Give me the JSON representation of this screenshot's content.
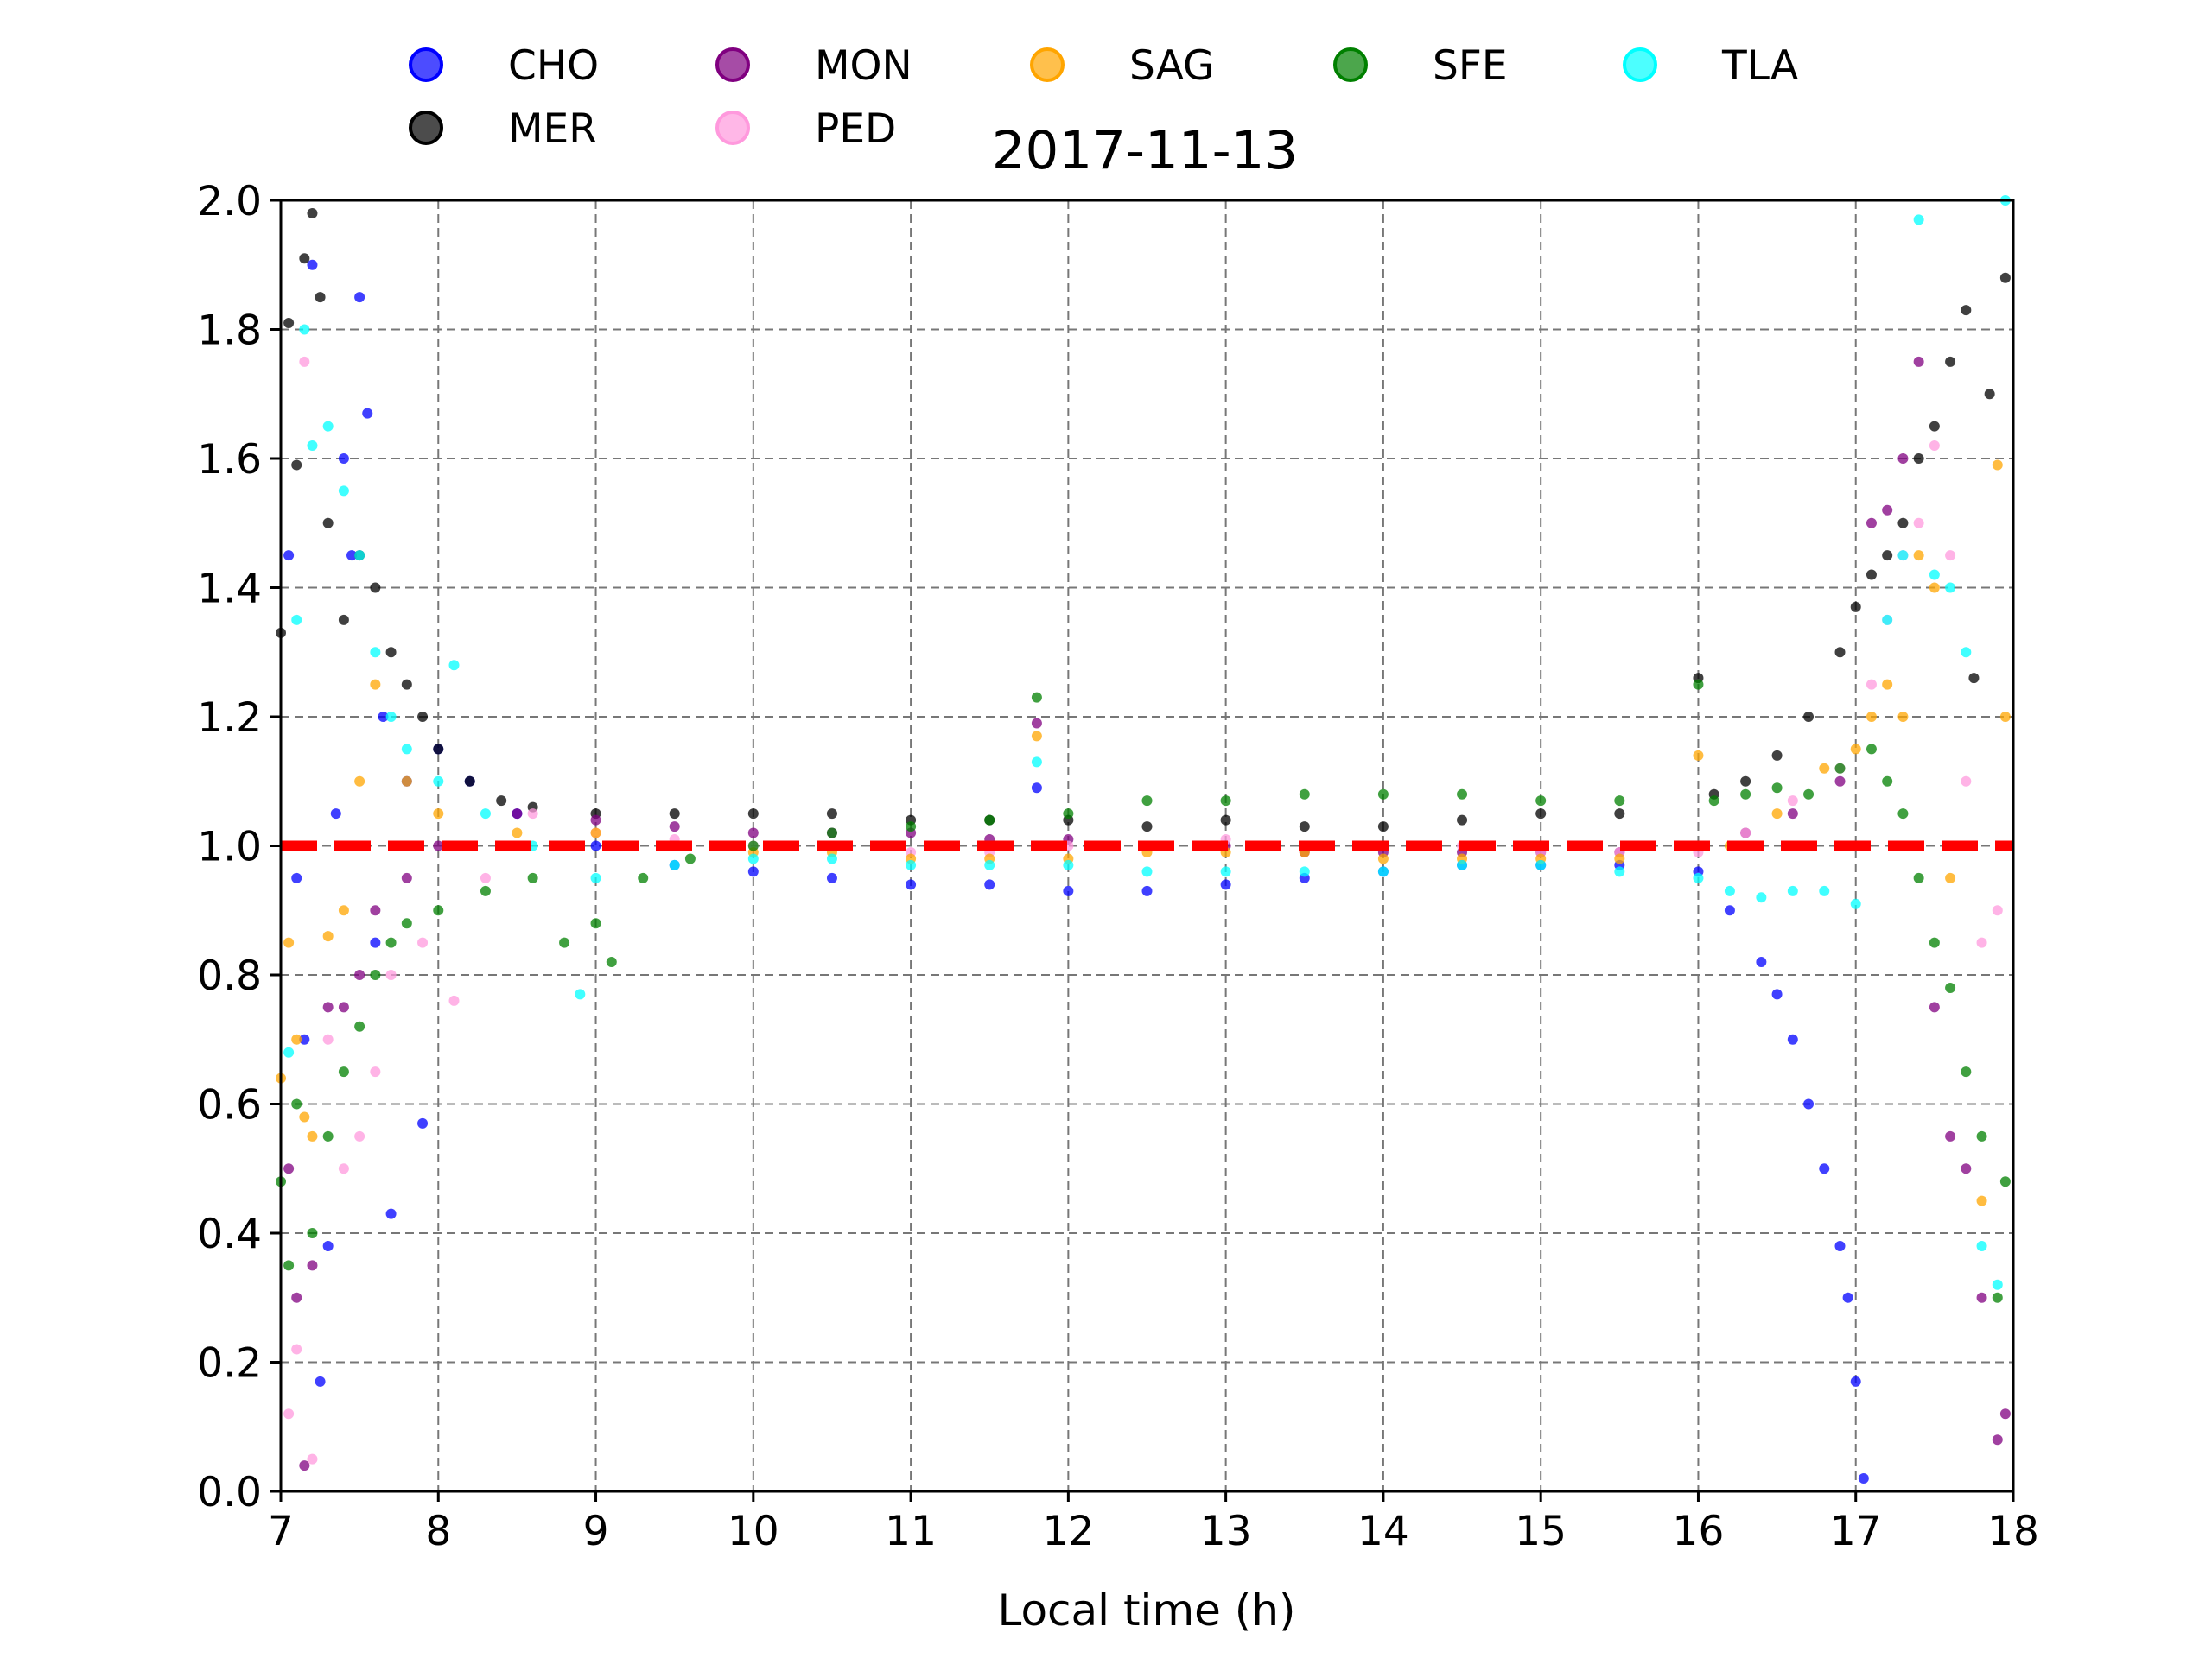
{
  "chart_data": {
    "type": "scatter",
    "title": "2017-11-13",
    "xlabel": "Local time (h)",
    "ylabel": "",
    "xlim": [
      7,
      18
    ],
    "ylim": [
      0.0,
      2.0
    ],
    "xticks": [
      "7",
      "8",
      "9",
      "10",
      "11",
      "12",
      "13",
      "14",
      "15",
      "16",
      "17",
      "18"
    ],
    "yticks": [
      "0.0",
      "0.2",
      "0.4",
      "0.6",
      "0.8",
      "1.0",
      "1.2",
      "1.4",
      "1.6",
      "1.8",
      "2.0"
    ],
    "grid": true,
    "legend_position": "top (above plot), two rows",
    "reference_line": {
      "y": 1.0,
      "color": "#ff0000",
      "style": "dashed"
    },
    "series": [
      {
        "name": "CHO",
        "color": "#0000ff",
        "points": [
          [
            7.05,
            1.45
          ],
          [
            7.1,
            0.95
          ],
          [
            7.15,
            0.7
          ],
          [
            7.2,
            1.9
          ],
          [
            7.25,
            0.17
          ],
          [
            7.3,
            0.38
          ],
          [
            7.35,
            1.05
          ],
          [
            7.4,
            1.6
          ],
          [
            7.45,
            1.45
          ],
          [
            7.5,
            1.85
          ],
          [
            7.55,
            1.67
          ],
          [
            7.6,
            0.85
          ],
          [
            7.65,
            1.2
          ],
          [
            7.7,
            0.43
          ],
          [
            7.8,
            1.1
          ],
          [
            7.9,
            0.57
          ],
          [
            8.0,
            1.15
          ],
          [
            8.2,
            1.1
          ],
          [
            8.5,
            1.05
          ],
          [
            9.0,
            1.0
          ],
          [
            9.5,
            0.97
          ],
          [
            10.0,
            0.96
          ],
          [
            10.5,
            0.95
          ],
          [
            11.0,
            0.94
          ],
          [
            11.5,
            0.94
          ],
          [
            12.0,
            0.93
          ],
          [
            12.5,
            0.93
          ],
          [
            13.0,
            0.94
          ],
          [
            13.5,
            0.95
          ],
          [
            14.0,
            0.96
          ],
          [
            14.5,
            0.97
          ],
          [
            15.0,
            0.97
          ],
          [
            15.5,
            0.97
          ],
          [
            16.0,
            0.96
          ],
          [
            16.2,
            0.9
          ],
          [
            16.4,
            0.82
          ],
          [
            16.5,
            0.77
          ],
          [
            16.6,
            0.7
          ],
          [
            16.7,
            0.6
          ],
          [
            16.8,
            0.5
          ],
          [
            16.9,
            0.38
          ],
          [
            16.95,
            0.3
          ],
          [
            17.0,
            0.17
          ],
          [
            17.05,
            0.02
          ],
          [
            11.8,
            1.09
          ]
        ]
      },
      {
        "name": "MER",
        "color": "#000000",
        "points": [
          [
            7.0,
            1.33
          ],
          [
            7.05,
            1.81
          ],
          [
            7.1,
            1.59
          ],
          [
            7.15,
            1.91
          ],
          [
            7.2,
            1.98
          ],
          [
            7.25,
            1.85
          ],
          [
            7.3,
            1.5
          ],
          [
            7.4,
            1.35
          ],
          [
            7.5,
            1.45
          ],
          [
            7.6,
            1.4
          ],
          [
            7.7,
            1.3
          ],
          [
            7.8,
            1.25
          ],
          [
            7.9,
            1.2
          ],
          [
            8.0,
            1.15
          ],
          [
            8.2,
            1.1
          ],
          [
            8.4,
            1.07
          ],
          [
            8.6,
            1.06
          ],
          [
            9.0,
            1.05
          ],
          [
            9.5,
            1.05
          ],
          [
            10.0,
            1.05
          ],
          [
            10.5,
            1.05
          ],
          [
            11.0,
            1.04
          ],
          [
            11.5,
            1.04
          ],
          [
            12.0,
            1.04
          ],
          [
            12.5,
            1.03
          ],
          [
            13.0,
            1.04
          ],
          [
            13.5,
            1.03
          ],
          [
            14.0,
            1.03
          ],
          [
            14.5,
            1.04
          ],
          [
            15.0,
            1.05
          ],
          [
            15.5,
            1.05
          ],
          [
            16.0,
            1.26
          ],
          [
            16.1,
            1.08
          ],
          [
            16.3,
            1.1
          ],
          [
            16.5,
            1.14
          ],
          [
            16.7,
            1.2
          ],
          [
            16.9,
            1.3
          ],
          [
            17.0,
            1.37
          ],
          [
            17.1,
            1.42
          ],
          [
            17.2,
            1.45
          ],
          [
            17.3,
            1.5
          ],
          [
            17.4,
            1.6
          ],
          [
            17.5,
            1.65
          ],
          [
            17.6,
            1.75
          ],
          [
            17.7,
            1.83
          ],
          [
            17.75,
            1.26
          ],
          [
            17.85,
            1.7
          ],
          [
            17.95,
            1.88
          ]
        ]
      },
      {
        "name": "MON",
        "color": "#800080",
        "points": [
          [
            7.05,
            0.5
          ],
          [
            7.1,
            0.3
          ],
          [
            7.15,
            0.04
          ],
          [
            7.2,
            0.35
          ],
          [
            7.3,
            0.75
          ],
          [
            7.4,
            0.75
          ],
          [
            7.5,
            0.8
          ],
          [
            7.6,
            0.9
          ],
          [
            7.8,
            0.95
          ],
          [
            8.0,
            1.0
          ],
          [
            8.5,
            1.05
          ],
          [
            9.0,
            1.04
          ],
          [
            9.5,
            1.03
          ],
          [
            10.0,
            1.02
          ],
          [
            10.5,
            1.02
          ],
          [
            11.0,
            1.02
          ],
          [
            11.5,
            1.01
          ],
          [
            11.8,
            1.19
          ],
          [
            12.0,
            1.01
          ],
          [
            12.5,
            1.0
          ],
          [
            13.0,
            1.0
          ],
          [
            13.5,
            0.99
          ],
          [
            14.0,
            0.99
          ],
          [
            14.5,
            0.99
          ],
          [
            15.0,
            0.99
          ],
          [
            15.5,
            0.99
          ],
          [
            16.0,
            1.0
          ],
          [
            16.3,
            1.02
          ],
          [
            16.6,
            1.05
          ],
          [
            16.9,
            1.1
          ],
          [
            17.1,
            1.5
          ],
          [
            17.2,
            1.52
          ],
          [
            17.3,
            1.6
          ],
          [
            17.4,
            1.75
          ],
          [
            17.5,
            0.75
          ],
          [
            17.6,
            0.55
          ],
          [
            17.7,
            0.5
          ],
          [
            17.8,
            0.3
          ],
          [
            17.9,
            0.08
          ],
          [
            17.95,
            0.12
          ]
        ]
      },
      {
        "name": "PED",
        "color": "#ff99dd",
        "points": [
          [
            7.05,
            0.12
          ],
          [
            7.1,
            0.22
          ],
          [
            7.15,
            1.75
          ],
          [
            7.2,
            0.05
          ],
          [
            7.3,
            0.7
          ],
          [
            7.4,
            0.5
          ],
          [
            7.5,
            0.55
          ],
          [
            7.6,
            0.65
          ],
          [
            7.7,
            0.8
          ],
          [
            7.9,
            0.85
          ],
          [
            8.1,
            0.76
          ],
          [
            8.3,
            0.95
          ],
          [
            8.6,
            1.05
          ],
          [
            9.0,
            1.02
          ],
          [
            9.5,
            1.01
          ],
          [
            10.0,
            1.0
          ],
          [
            10.5,
            1.0
          ],
          [
            11.0,
            0.99
          ],
          [
            11.5,
            0.99
          ],
          [
            12.0,
            1.0
          ],
          [
            12.5,
            1.0
          ],
          [
            13.0,
            1.01
          ],
          [
            13.5,
            1.0
          ],
          [
            14.0,
            1.0
          ],
          [
            14.5,
            1.0
          ],
          [
            15.0,
            0.99
          ],
          [
            15.5,
            0.99
          ],
          [
            16.0,
            0.99
          ],
          [
            16.3,
            1.02
          ],
          [
            16.6,
            1.07
          ],
          [
            16.9,
            1.12
          ],
          [
            17.1,
            1.25
          ],
          [
            17.2,
            1.35
          ],
          [
            17.3,
            1.45
          ],
          [
            17.4,
            1.5
          ],
          [
            17.5,
            1.62
          ],
          [
            17.6,
            1.45
          ],
          [
            17.7,
            1.1
          ],
          [
            17.8,
            0.85
          ],
          [
            17.9,
            0.9
          ]
        ]
      },
      {
        "name": "SAG",
        "color": "#ffa500",
        "points": [
          [
            7.0,
            0.64
          ],
          [
            7.05,
            0.85
          ],
          [
            7.1,
            0.7
          ],
          [
            7.15,
            0.58
          ],
          [
            7.2,
            0.55
          ],
          [
            7.3,
            0.86
          ],
          [
            7.4,
            0.9
          ],
          [
            7.5,
            1.1
          ],
          [
            7.6,
            1.25
          ],
          [
            7.8,
            1.1
          ],
          [
            8.0,
            1.05
          ],
          [
            8.5,
            1.02
          ],
          [
            9.0,
            1.02
          ],
          [
            9.5,
            1.0
          ],
          [
            10.0,
            0.99
          ],
          [
            10.5,
            0.99
          ],
          [
            11.0,
            0.98
          ],
          [
            11.5,
            0.98
          ],
          [
            11.8,
            1.17
          ],
          [
            12.0,
            0.98
          ],
          [
            12.5,
            0.99
          ],
          [
            13.0,
            0.99
          ],
          [
            13.5,
            0.99
          ],
          [
            14.0,
            0.98
          ],
          [
            14.5,
            0.98
          ],
          [
            15.0,
            0.98
          ],
          [
            15.5,
            0.98
          ],
          [
            16.0,
            1.14
          ],
          [
            16.2,
            1.0
          ],
          [
            16.5,
            1.05
          ],
          [
            16.8,
            1.12
          ],
          [
            17.0,
            1.15
          ],
          [
            17.1,
            1.2
          ],
          [
            17.2,
            1.25
          ],
          [
            17.3,
            1.2
          ],
          [
            17.4,
            1.45
          ],
          [
            17.5,
            1.4
          ],
          [
            17.6,
            0.95
          ],
          [
            17.7,
            1.0
          ],
          [
            17.8,
            0.45
          ],
          [
            17.9,
            1.59
          ],
          [
            17.95,
            1.2
          ]
        ]
      },
      {
        "name": "SFE",
        "color": "#008000",
        "points": [
          [
            7.0,
            0.48
          ],
          [
            7.05,
            0.35
          ],
          [
            7.1,
            0.6
          ],
          [
            7.2,
            0.4
          ],
          [
            7.3,
            0.55
          ],
          [
            7.4,
            0.65
          ],
          [
            7.5,
            0.72
          ],
          [
            7.6,
            0.8
          ],
          [
            7.7,
            0.85
          ],
          [
            7.8,
            0.88
          ],
          [
            8.0,
            0.9
          ],
          [
            8.3,
            0.93
          ],
          [
            8.6,
            0.95
          ],
          [
            8.8,
            0.85
          ],
          [
            9.0,
            0.88
          ],
          [
            9.1,
            0.82
          ],
          [
            9.3,
            0.95
          ],
          [
            9.6,
            0.98
          ],
          [
            10.0,
            1.0
          ],
          [
            10.5,
            1.02
          ],
          [
            11.0,
            1.03
          ],
          [
            11.5,
            1.04
          ],
          [
            11.8,
            1.23
          ],
          [
            12.0,
            1.05
          ],
          [
            12.5,
            1.07
          ],
          [
            13.0,
            1.07
          ],
          [
            13.5,
            1.08
          ],
          [
            14.0,
            1.08
          ],
          [
            14.5,
            1.08
          ],
          [
            15.0,
            1.07
          ],
          [
            15.5,
            1.07
          ],
          [
            16.0,
            1.25
          ],
          [
            16.1,
            1.07
          ],
          [
            16.3,
            1.08
          ],
          [
            16.5,
            1.09
          ],
          [
            16.7,
            1.08
          ],
          [
            16.9,
            1.12
          ],
          [
            17.1,
            1.15
          ],
          [
            17.2,
            1.1
          ],
          [
            17.3,
            1.05
          ],
          [
            17.4,
            0.95
          ],
          [
            17.5,
            0.85
          ],
          [
            17.6,
            0.78
          ],
          [
            17.7,
            0.65
          ],
          [
            17.8,
            0.55
          ],
          [
            17.9,
            0.3
          ],
          [
            17.95,
            0.48
          ]
        ]
      },
      {
        "name": "TLA",
        "color": "#00ffff",
        "points": [
          [
            7.05,
            0.68
          ],
          [
            7.1,
            1.35
          ],
          [
            7.15,
            1.8
          ],
          [
            7.2,
            1.62
          ],
          [
            7.3,
            1.65
          ],
          [
            7.4,
            1.55
          ],
          [
            7.5,
            1.45
          ],
          [
            7.6,
            1.3
          ],
          [
            7.7,
            1.2
          ],
          [
            7.8,
            1.15
          ],
          [
            8.0,
            1.1
          ],
          [
            8.1,
            1.28
          ],
          [
            8.3,
            1.05
          ],
          [
            8.6,
            1.0
          ],
          [
            8.9,
            0.77
          ],
          [
            9.0,
            0.95
          ],
          [
            9.5,
            0.97
          ],
          [
            10.0,
            0.98
          ],
          [
            10.5,
            0.98
          ],
          [
            11.0,
            0.97
          ],
          [
            11.5,
            0.97
          ],
          [
            11.8,
            1.13
          ],
          [
            12.0,
            0.97
          ],
          [
            12.5,
            0.96
          ],
          [
            13.0,
            0.96
          ],
          [
            13.5,
            0.96
          ],
          [
            14.0,
            0.96
          ],
          [
            14.5,
            0.97
          ],
          [
            15.0,
            0.97
          ],
          [
            15.5,
            0.96
          ],
          [
            16.0,
            0.95
          ],
          [
            16.2,
            0.93
          ],
          [
            16.4,
            0.92
          ],
          [
            16.6,
            0.93
          ],
          [
            16.8,
            0.93
          ],
          [
            17.0,
            0.91
          ],
          [
            17.2,
            1.35
          ],
          [
            17.3,
            1.45
          ],
          [
            17.4,
            1.97
          ],
          [
            17.5,
            1.42
          ],
          [
            17.6,
            1.4
          ],
          [
            17.7,
            1.3
          ],
          [
            17.8,
            0.38
          ],
          [
            17.9,
            0.32
          ],
          [
            17.95,
            2.0
          ]
        ]
      }
    ]
  }
}
